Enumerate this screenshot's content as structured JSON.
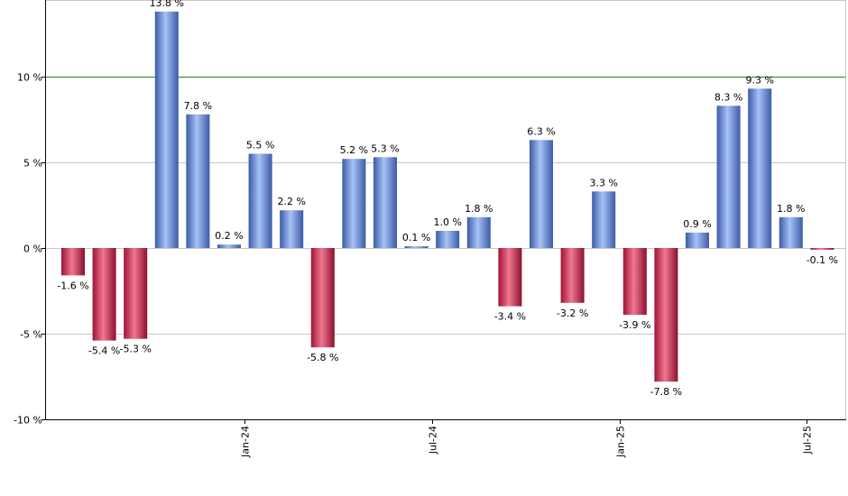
{
  "chart_data": {
    "type": "bar",
    "title": "",
    "xlabel": "",
    "ylabel": "",
    "ylim": [
      -10,
      15
    ],
    "grid": true,
    "y_ticks": [
      {
        "value": 10,
        "label": "10 %"
      },
      {
        "value": 5,
        "label": "5 %"
      },
      {
        "value": 0,
        "label": "0 %"
      },
      {
        "value": -5,
        "label": "-5 %"
      },
      {
        "value": -10,
        "label": "-10 %"
      }
    ],
    "x_ticks": [
      {
        "index": 5.5,
        "label": "Jan-24"
      },
      {
        "index": 11.5,
        "label": "Jul-24"
      },
      {
        "index": 17.5,
        "label": "Jan-25"
      },
      {
        "index": 23.5,
        "label": "Jul-25"
      }
    ],
    "reference_line": {
      "value": 10,
      "color": "#2e7d32"
    },
    "values": [
      -1.6,
      -5.4,
      -5.3,
      13.8,
      7.8,
      0.2,
      5.5,
      2.2,
      -5.8,
      5.2,
      5.3,
      0.1,
      1.0,
      1.8,
      -3.4,
      6.3,
      -3.2,
      3.3,
      -3.9,
      -7.8,
      0.9,
      8.3,
      9.3,
      1.8,
      -0.1
    ],
    "data_labels": [
      "-1.6 %",
      "-5.4 %",
      "-5.3 %",
      "13.8 %",
      "7.8 %",
      "0.2 %",
      "5.5 %",
      "2.2 %",
      "-5.8 %",
      "5.2 %",
      "5.3 %",
      "0.1 %",
      "1.0 %",
      "1.8 %",
      "-3.4 %",
      "6.3 %",
      "-3.2 %",
      "3.3 %",
      "-3.9 %",
      "-7.8 %",
      "0.9 %",
      "8.3 %",
      "9.3 %",
      "1.8 %",
      "-0.1 %"
    ],
    "colors": {
      "positive_light": "#9db8ef",
      "positive_dark": "#3a5ba8",
      "negative_light": "#e8607e",
      "negative_dark": "#a01236",
      "grid": "#c8c8c8",
      "axis": "#000000"
    }
  }
}
